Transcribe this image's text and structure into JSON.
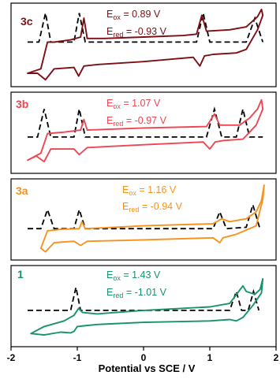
{
  "chart_data": {
    "type": "line",
    "xlabel": "Potential vs SCE / V",
    "xlim": [
      -2,
      2
    ],
    "xticks": [
      "-2",
      "-1",
      "0",
      "1",
      "2"
    ],
    "grid": false,
    "panels": [
      {
        "id": "3c",
        "label": "3c",
        "color": "#7b0f14",
        "ox": {
          "main": "E",
          "sub": "ox",
          "rest": " = 0.89 V"
        },
        "red": {
          "main": "E",
          "sub": "red",
          "rest": " = -0.93 V"
        },
        "cv_loop": [
          [
            -1.75,
            0.12
          ],
          [
            -1.55,
            0.18
          ],
          [
            -1.45,
            0.55
          ],
          [
            -1.35,
            0.55
          ],
          [
            -1.1,
            0.58
          ],
          [
            -0.95,
            0.62
          ],
          [
            -0.9,
            0.88
          ],
          [
            -0.85,
            0.6
          ],
          [
            -0.6,
            0.6
          ],
          [
            0.0,
            0.62
          ],
          [
            0.6,
            0.64
          ],
          [
            0.8,
            0.66
          ],
          [
            0.88,
            0.92
          ],
          [
            0.95,
            0.7
          ],
          [
            1.3,
            0.72
          ],
          [
            1.55,
            0.76
          ],
          [
            1.72,
            0.9
          ],
          [
            1.78,
            1.0
          ],
          [
            1.8,
            0.92
          ],
          [
            1.72,
            0.72
          ],
          [
            1.55,
            0.45
          ],
          [
            1.4,
            0.4
          ],
          [
            1.05,
            0.38
          ],
          [
            0.92,
            0.36
          ],
          [
            0.85,
            0.22
          ],
          [
            0.75,
            0.34
          ],
          [
            0.0,
            0.28
          ],
          [
            -0.7,
            0.24
          ],
          [
            -0.9,
            0.22
          ],
          [
            -0.98,
            0.08
          ],
          [
            -1.05,
            0.2
          ],
          [
            -1.35,
            0.18
          ],
          [
            -1.48,
            0.03
          ],
          [
            -1.6,
            0.12
          ],
          [
            -1.75,
            0.12
          ]
        ],
        "dpv": [
          [
            -1.75,
            0.55
          ],
          [
            -1.58,
            0.55
          ],
          [
            -1.48,
            0.95
          ],
          [
            -1.4,
            0.55
          ],
          [
            -1.05,
            0.55
          ],
          [
            -0.97,
            0.95
          ],
          [
            -0.88,
            0.55
          ],
          [
            0.8,
            0.55
          ],
          [
            0.9,
            0.95
          ],
          [
            1.0,
            0.55
          ],
          [
            1.55,
            0.55
          ],
          [
            1.68,
            0.88
          ],
          [
            1.8,
            0.55
          ]
        ]
      },
      {
        "id": "3b",
        "label": "3b",
        "color": "#ee4652",
        "ox": {
          "main": "E",
          "sub": "ox",
          "rest": " = 1.07 V"
        },
        "red": {
          "main": "E",
          "sub": "red",
          "rest": " = -0.97 V"
        },
        "cv_loop": [
          [
            -1.75,
            0.12
          ],
          [
            -1.55,
            0.22
          ],
          [
            -1.45,
            0.5
          ],
          [
            -1.2,
            0.52
          ],
          [
            -0.95,
            0.55
          ],
          [
            -0.9,
            0.7
          ],
          [
            -0.85,
            0.55
          ],
          [
            0.0,
            0.58
          ],
          [
            0.95,
            0.6
          ],
          [
            1.07,
            0.78
          ],
          [
            1.15,
            0.62
          ],
          [
            1.45,
            0.62
          ],
          [
            1.6,
            0.72
          ],
          [
            1.72,
            0.85
          ],
          [
            1.78,
            0.98
          ],
          [
            1.8,
            0.85
          ],
          [
            1.7,
            0.62
          ],
          [
            1.5,
            0.42
          ],
          [
            1.2,
            0.4
          ],
          [
            1.08,
            0.38
          ],
          [
            1.0,
            0.28
          ],
          [
            0.9,
            0.38
          ],
          [
            0.0,
            0.34
          ],
          [
            -0.85,
            0.3
          ],
          [
            -0.97,
            0.2
          ],
          [
            -1.05,
            0.28
          ],
          [
            -1.4,
            0.28
          ],
          [
            -1.5,
            0.1
          ],
          [
            -1.62,
            0.18
          ],
          [
            -1.75,
            0.12
          ]
        ],
        "dpv": [
          [
            -1.75,
            0.45
          ],
          [
            -1.6,
            0.45
          ],
          [
            -1.5,
            0.85
          ],
          [
            -1.4,
            0.45
          ],
          [
            -1.05,
            0.45
          ],
          [
            -0.97,
            0.85
          ],
          [
            -0.88,
            0.45
          ],
          [
            0.95,
            0.45
          ],
          [
            1.07,
            0.85
          ],
          [
            1.18,
            0.45
          ],
          [
            1.4,
            0.45
          ],
          [
            1.5,
            0.85
          ],
          [
            1.6,
            0.45
          ],
          [
            1.8,
            0.45
          ]
        ]
      },
      {
        "id": "3a",
        "label": "3a",
        "color": "#f7921e",
        "ox": {
          "main": "E",
          "sub": "ox",
          "rest": " = 1.16 V"
        },
        "red": {
          "main": "E",
          "sub": "red",
          "rest": " = -0.94 V"
        },
        "cv_loop": [
          [
            -1.55,
            0.1
          ],
          [
            -1.45,
            0.35
          ],
          [
            -1.25,
            0.37
          ],
          [
            -0.97,
            0.38
          ],
          [
            -0.93,
            0.48
          ],
          [
            -0.88,
            0.38
          ],
          [
            0.0,
            0.42
          ],
          [
            1.05,
            0.45
          ],
          [
            1.18,
            0.52
          ],
          [
            1.3,
            0.48
          ],
          [
            1.55,
            0.52
          ],
          [
            1.7,
            0.62
          ],
          [
            1.78,
            0.78
          ],
          [
            1.82,
            1.0
          ],
          [
            1.8,
            0.8
          ],
          [
            1.7,
            0.42
          ],
          [
            1.4,
            0.3
          ],
          [
            1.2,
            0.25
          ],
          [
            1.15,
            0.18
          ],
          [
            1.05,
            0.25
          ],
          [
            0.0,
            0.22
          ],
          [
            -0.85,
            0.2
          ],
          [
            -0.95,
            0.14
          ],
          [
            -1.05,
            0.2
          ],
          [
            -1.35,
            0.18
          ],
          [
            -1.48,
            0.05
          ],
          [
            -1.55,
            0.1
          ]
        ],
        "dpv": [
          [
            -1.75,
            0.38
          ],
          [
            -1.55,
            0.38
          ],
          [
            -1.45,
            0.65
          ],
          [
            -1.35,
            0.38
          ],
          [
            -1.05,
            0.38
          ],
          [
            -0.97,
            0.65
          ],
          [
            -0.88,
            0.38
          ],
          [
            1.05,
            0.38
          ],
          [
            1.15,
            0.62
          ],
          [
            1.25,
            0.38
          ],
          [
            1.55,
            0.4
          ],
          [
            1.65,
            0.72
          ],
          [
            1.75,
            0.4
          ]
        ]
      },
      {
        "id": "1",
        "label": "1",
        "color": "#17936b",
        "ox": {
          "main": "E",
          "sub": "ox",
          "rest": " = 1.43 V"
        },
        "red": {
          "main": "E",
          "sub": "red",
          "rest": " = -1.01 V"
        },
        "cv_loop": [
          [
            -1.7,
            0.12
          ],
          [
            -1.5,
            0.22
          ],
          [
            -1.2,
            0.3
          ],
          [
            -1.05,
            0.38
          ],
          [
            -0.98,
            0.48
          ],
          [
            -0.92,
            0.42
          ],
          [
            -0.7,
            0.4
          ],
          [
            0.0,
            0.45
          ],
          [
            1.0,
            0.5
          ],
          [
            1.3,
            0.55
          ],
          [
            1.42,
            0.7
          ],
          [
            1.5,
            0.8
          ],
          [
            1.55,
            0.72
          ],
          [
            1.68,
            0.68
          ],
          [
            1.76,
            0.75
          ],
          [
            1.8,
            0.9
          ],
          [
            1.78,
            0.7
          ],
          [
            1.65,
            0.52
          ],
          [
            1.5,
            0.35
          ],
          [
            1.4,
            0.3
          ],
          [
            1.3,
            0.32
          ],
          [
            1.0,
            0.3
          ],
          [
            0.0,
            0.28
          ],
          [
            -0.7,
            0.25
          ],
          [
            -0.9,
            0.23
          ],
          [
            -1.0,
            0.22
          ],
          [
            -1.05,
            0.15
          ],
          [
            -1.1,
            0.13
          ],
          [
            -1.25,
            0.14
          ],
          [
            -1.5,
            0.1
          ],
          [
            -1.7,
            0.12
          ]
        ],
        "dpv": [
          [
            -1.75,
            0.45
          ],
          [
            -1.4,
            0.45
          ],
          [
            -1.1,
            0.45
          ],
          [
            -1.02,
            0.78
          ],
          [
            -0.95,
            0.45
          ],
          [
            1.3,
            0.45
          ],
          [
            1.4,
            0.72
          ],
          [
            1.48,
            0.45
          ],
          [
            1.58,
            0.45
          ],
          [
            1.66,
            0.72
          ],
          [
            1.74,
            0.45
          ]
        ]
      }
    ]
  }
}
